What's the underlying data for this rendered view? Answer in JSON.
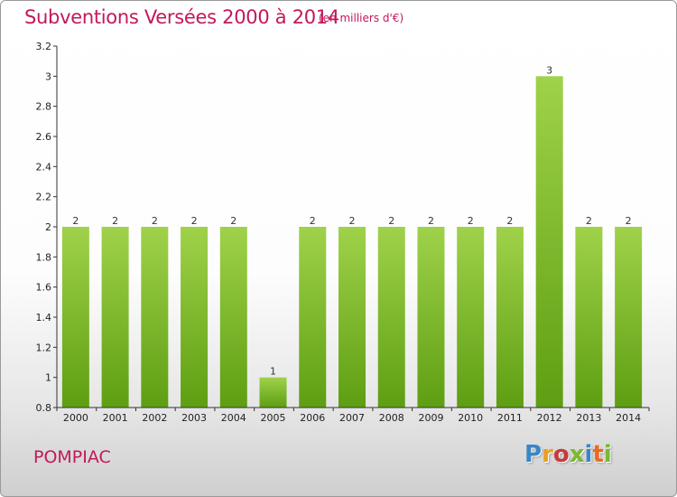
{
  "header": {
    "title": "Subventions Versées 2000 à 2014",
    "subtitle": "(en milliers d'€)"
  },
  "footer": {
    "commune": "POMPIAC",
    "logo_text": "Proxiti"
  },
  "colors": {
    "accent": "#c2185b",
    "bar_light": "#9fd24a",
    "bar_dark": "#5e9e12",
    "logo_letters": [
      "#3a86c8",
      "#e8a020",
      "#c83a3a",
      "#7ab82e",
      "#3a86c8",
      "#e86a20",
      "#7ab82e"
    ]
  },
  "chart_data": {
    "type": "bar",
    "title": "Subventions Versées 2000 à 2014",
    "subtitle": "(en milliers d'€)",
    "xlabel": "",
    "ylabel": "",
    "categories": [
      "2000",
      "2001",
      "2002",
      "2003",
      "2004",
      "2005",
      "2006",
      "2007",
      "2008",
      "2009",
      "2010",
      "2011",
      "2012",
      "2013",
      "2014"
    ],
    "values": [
      2,
      2,
      2,
      2,
      2,
      1,
      2,
      2,
      2,
      2,
      2,
      2,
      3,
      2,
      2
    ],
    "data_labels": [
      "2",
      "2",
      "2",
      "2",
      "2",
      "1",
      "2",
      "2",
      "2",
      "2",
      "2",
      "2",
      "3",
      "2",
      "2"
    ],
    "ylim": [
      0.8,
      3.2
    ],
    "yticks": [
      0.8,
      1,
      1.2,
      1.4,
      1.6,
      1.8,
      2,
      2.2,
      2.4,
      2.6,
      2.8,
      3,
      3.2
    ],
    "ytick_labels": [
      "0.8",
      "1",
      "1.2",
      "1.4",
      "1.6",
      "1.8",
      "2",
      "2.2",
      "2.4",
      "2.6",
      "2.8",
      "3",
      "3.2"
    ],
    "grid": false,
    "legend": "none"
  }
}
